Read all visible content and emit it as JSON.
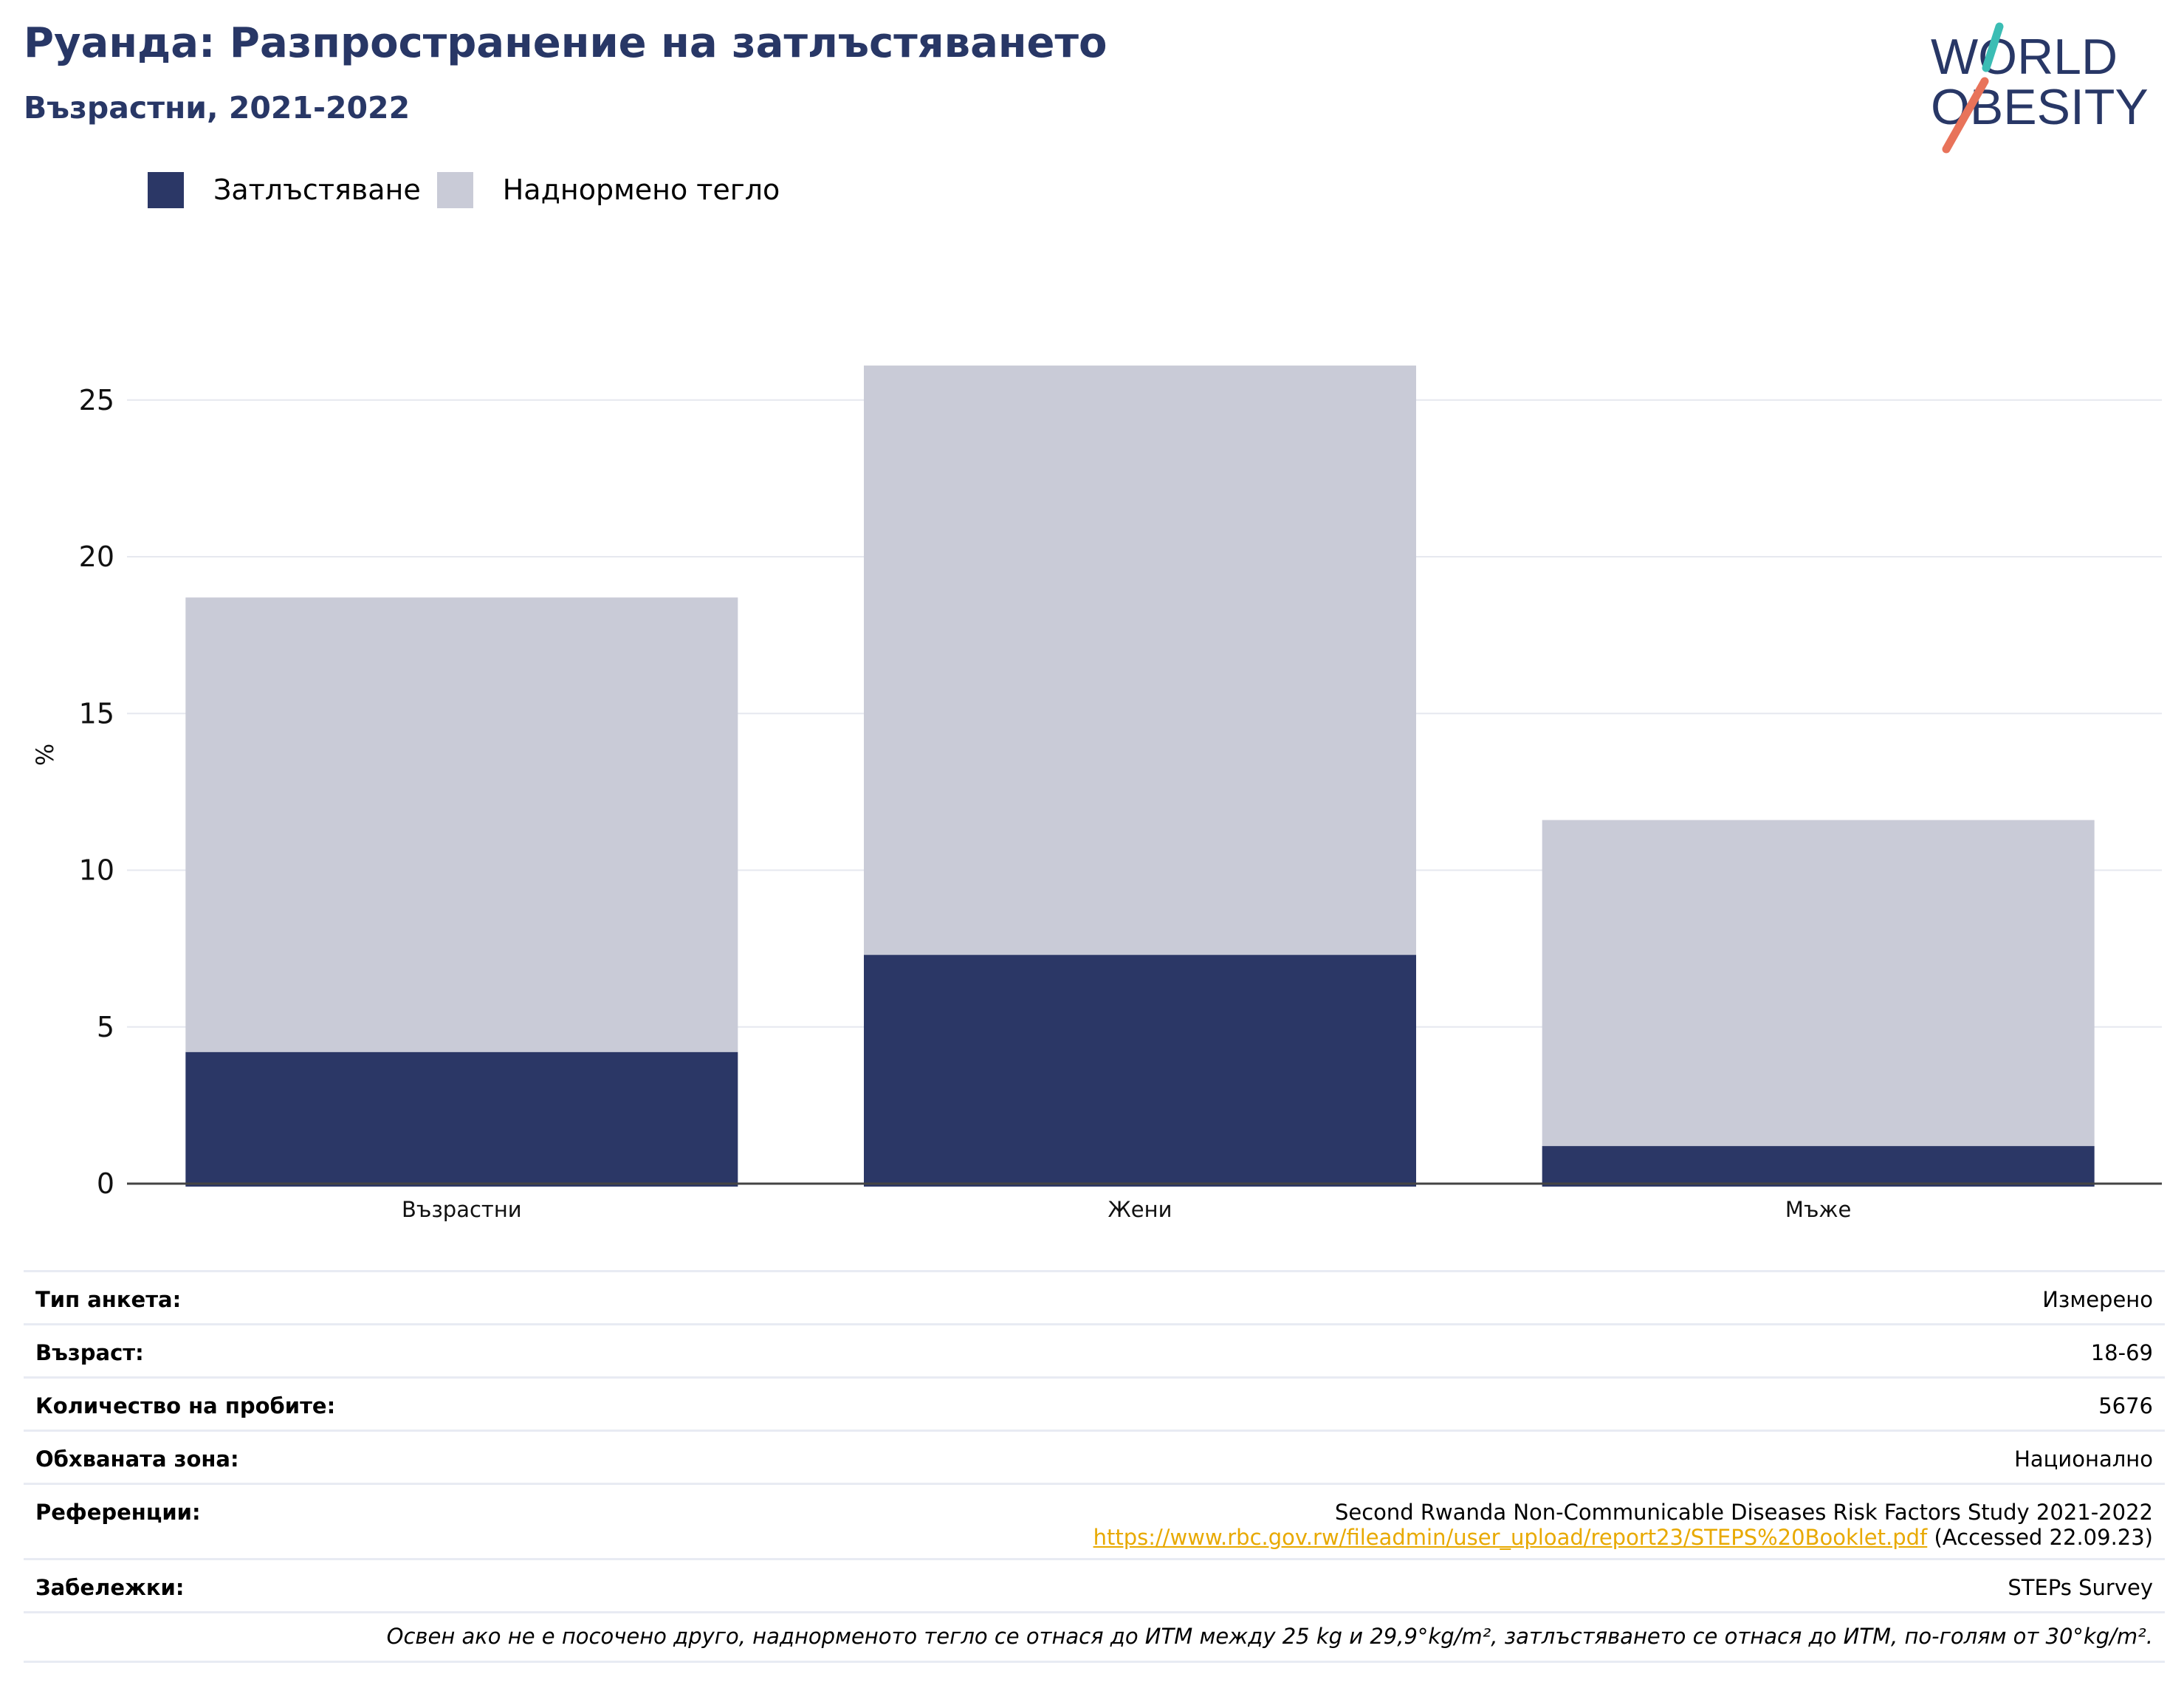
{
  "title": "Руанда: Разпространение на затлъстяването",
  "subtitle": "Възрастни, 2021-2022",
  "logo": {
    "line1": "WORLD",
    "line2": "OBESITY"
  },
  "colors": {
    "obesity": "#2b3766",
    "overweight": "#c9cbd7",
    "title": "#283766",
    "link": "#e8a900",
    "logo_teal": "#3bbdb4",
    "logo_coral": "#e8735a"
  },
  "legend": {
    "obesity_label": "Затлъстяване",
    "overweight_label": "Наднормено тегло"
  },
  "chart_data": {
    "type": "bar",
    "stacked": true,
    "categories": [
      "Възрастни",
      "Жени",
      "Мъже"
    ],
    "series": [
      {
        "name": "Затлъстяване",
        "values": [
          4.2,
          7.3,
          1.2
        ]
      },
      {
        "name": "Наднормено тегло",
        "values": [
          14.5,
          18.8,
          10.4
        ]
      }
    ],
    "yticks": [
      "0",
      "5",
      "10",
      "15",
      "20",
      "25"
    ],
    "ylabel": "%",
    "ylim": [
      0,
      27.5
    ],
    "grid": true,
    "legend_position": "top-left"
  },
  "info": {
    "survey_type": {
      "label": "Тип анкета:",
      "value": "Измерено"
    },
    "age": {
      "label": "Възраст:",
      "value": "18-69"
    },
    "sample_size": {
      "label": "Количество на пробите:",
      "value": "5676"
    },
    "area": {
      "label": "Обхваната зона:",
      "value": "Национално"
    },
    "references": {
      "label": "Референции:",
      "line1": "Second Rwanda Non-Communicable Diseases Risk Factors Study 2021-2022",
      "link": "https://www.rbc.gov.rw/fileadmin/user_upload/report23/STEPS%20Booklet.pdf",
      "accessed": " (Accessed 22.09.23)"
    },
    "notes": {
      "label": "Забележки:",
      "value": "STEPs Survey"
    },
    "footnote": "Освен ако не е посочено друго, наднорменото тегло се отнася до ИТМ между 25 kg и 29,9°kg/m², затлъстяването се отнася до ИТМ, по-голям от 30°kg/m²."
  }
}
